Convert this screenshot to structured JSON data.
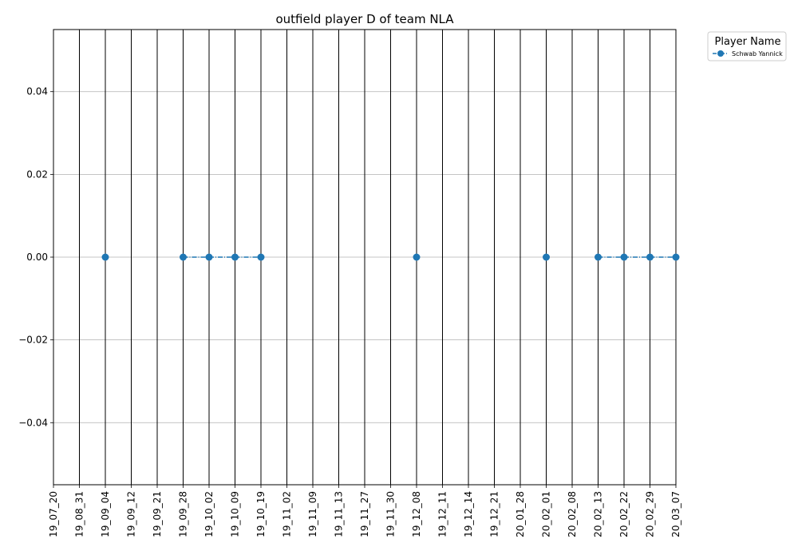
{
  "chart_data": {
    "type": "line",
    "title": "outfield player D of team NLA",
    "xlabel": "",
    "ylabel": "",
    "categories": [
      "19_07_20",
      "19_08_31",
      "19_09_04",
      "19_09_12",
      "19_09_21",
      "19_09_28",
      "19_10_02",
      "19_10_09",
      "19_10_19",
      "19_11_02",
      "19_11_09",
      "19_11_13",
      "19_11_27",
      "19_11_30",
      "19_12_08",
      "19_12_11",
      "19_12_14",
      "19_12_21",
      "20_01_28",
      "20_02_01",
      "20_02_08",
      "20_02_13",
      "20_02_22",
      "20_02_29",
      "20_03_07"
    ],
    "series": [
      {
        "name": "Schwab Yannick",
        "color": "#1f77b4",
        "values": [
          null,
          null,
          0,
          null,
          null,
          0,
          0,
          0,
          0,
          null,
          null,
          null,
          null,
          null,
          0,
          null,
          null,
          null,
          null,
          0,
          null,
          0,
          0,
          0,
          0
        ]
      }
    ],
    "ylim": [
      -0.055,
      0.055
    ],
    "yticks": [
      "0.04",
      "0.02",
      "0.00",
      "−0.02",
      "−0.04"
    ],
    "ytick_values": [
      0.04,
      0.02,
      0.0,
      -0.02,
      -0.04
    ],
    "grid": true,
    "legend": {
      "title": "Player Name",
      "placement": "outside-top-right"
    }
  }
}
